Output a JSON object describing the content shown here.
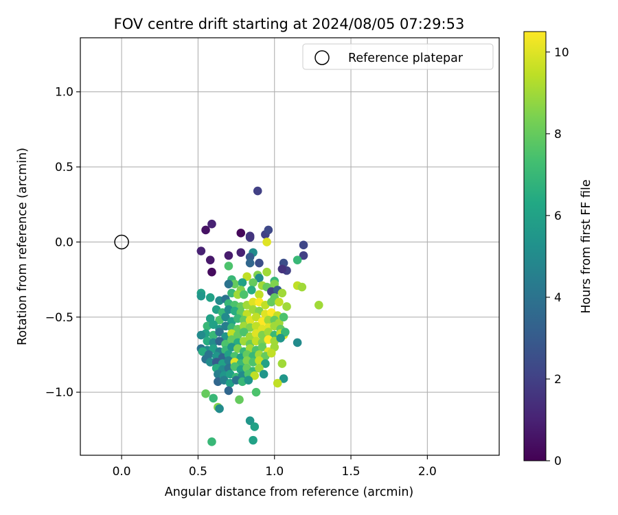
{
  "chart_data": {
    "type": "scatter",
    "title": "FOV centre drift starting at 2024/08/05 07:29:53",
    "xlabel": "Angular distance from reference (arcmin)",
    "ylabel": "Rotation from reference (arcmin)",
    "xlim": [
      -0.27,
      2.47
    ],
    "ylim": [
      -1.42,
      1.36
    ],
    "xticks": [
      0.0,
      0.5,
      1.0,
      1.5,
      2.0
    ],
    "yticks": [
      1.0,
      0.5,
      0.0,
      -0.5,
      -1.0
    ],
    "xtick_labels": [
      "0.0",
      "0.5",
      "1.0",
      "1.5",
      "2.0"
    ],
    "ytick_labels": [
      "1.0",
      "0.5",
      "0.0",
      "−0.5",
      "−1.0"
    ],
    "grid": true,
    "legend": {
      "placement": "upper-right",
      "entries": [
        {
          "label": "Reference platepar",
          "marker": "open-circle",
          "color": "#000000"
        }
      ]
    },
    "reference_point": {
      "x": 0.0,
      "y": 0.0
    },
    "colorbar": {
      "label": "Hours from first FF file",
      "colormap": "viridis",
      "range": [
        0,
        10.5
      ],
      "ticks": [
        0,
        2,
        4,
        6,
        8,
        10
      ],
      "tick_labels": [
        "0",
        "2",
        "4",
        "6",
        "8",
        "10"
      ]
    },
    "series": [
      {
        "marker": "filled-circle",
        "fields": [
          "x",
          "y",
          "hours"
        ],
        "points": [
          [
            0.89,
            0.34,
            2.0
          ],
          [
            0.55,
            0.08,
            0.5
          ],
          [
            0.59,
            0.12,
            1.0
          ],
          [
            0.78,
            0.06,
            0.2
          ],
          [
            0.84,
            0.03,
            1.8
          ],
          [
            0.84,
            0.04,
            1.6
          ],
          [
            0.94,
            0.05,
            2.0
          ],
          [
            0.96,
            0.08,
            2.3
          ],
          [
            0.95,
            0.0,
            10.0
          ],
          [
            1.19,
            -0.02,
            2.2
          ],
          [
            1.19,
            -0.09,
            2.0
          ],
          [
            0.52,
            -0.06,
            1.0
          ],
          [
            0.58,
            -0.12,
            0.7
          ],
          [
            0.59,
            -0.2,
            0.3
          ],
          [
            0.7,
            -0.09,
            0.8
          ],
          [
            0.78,
            -0.07,
            1.0
          ],
          [
            0.86,
            -0.07,
            5.0
          ],
          [
            0.84,
            -0.1,
            3.0
          ],
          [
            0.84,
            -0.14,
            3.5
          ],
          [
            0.9,
            -0.14,
            2.5
          ],
          [
            0.7,
            -0.16,
            7.5
          ],
          [
            1.06,
            -0.14,
            2.5
          ],
          [
            1.08,
            -0.19,
            2.0
          ],
          [
            1.05,
            -0.18,
            1.5
          ],
          [
            1.15,
            -0.12,
            7.0
          ],
          [
            0.95,
            -0.2,
            9.0
          ],
          [
            0.89,
            -0.22,
            8.5
          ],
          [
            0.82,
            -0.23,
            9.5
          ],
          [
            0.9,
            -0.24,
            5.0
          ],
          [
            0.72,
            -0.25,
            7.0
          ],
          [
            0.74,
            -0.28,
            8.0
          ],
          [
            0.7,
            -0.28,
            4.0
          ],
          [
            0.79,
            -0.27,
            6.0
          ],
          [
            0.86,
            -0.27,
            8.0
          ],
          [
            0.92,
            -0.29,
            9.0
          ],
          [
            1.0,
            -0.26,
            7.0
          ],
          [
            1.0,
            -0.28,
            8.5
          ],
          [
            1.15,
            -0.29,
            9.5
          ],
          [
            1.18,
            -0.3,
            9.0
          ],
          [
            0.95,
            -0.3,
            8.0
          ],
          [
            0.85,
            -0.32,
            6.5
          ],
          [
            0.78,
            -0.32,
            8.5
          ],
          [
            0.72,
            -0.34,
            7.0
          ],
          [
            0.76,
            -0.35,
            9.0
          ],
          [
            0.8,
            -0.35,
            7.5
          ],
          [
            0.9,
            -0.35,
            9.5
          ],
          [
            0.98,
            -0.33,
            2.0
          ],
          [
            1.02,
            -0.32,
            3.0
          ],
          [
            1.05,
            -0.34,
            9.0
          ],
          [
            1.0,
            -0.37,
            8.0
          ],
          [
            0.52,
            -0.34,
            6.0
          ],
          [
            0.52,
            -0.36,
            5.5
          ],
          [
            0.58,
            -0.37,
            6.0
          ],
          [
            0.64,
            -0.39,
            5.0
          ],
          [
            0.68,
            -0.38,
            4.0
          ],
          [
            0.7,
            -0.41,
            7.0
          ],
          [
            0.74,
            -0.42,
            7.5
          ],
          [
            0.78,
            -0.43,
            8.0
          ],
          [
            0.82,
            -0.42,
            9.0
          ],
          [
            0.86,
            -0.4,
            10.0
          ],
          [
            0.9,
            -0.4,
            10.5
          ],
          [
            0.94,
            -0.42,
            9.5
          ],
          [
            0.98,
            -0.4,
            8.0
          ],
          [
            1.03,
            -0.4,
            9.5
          ],
          [
            1.08,
            -0.43,
            9.0
          ],
          [
            1.29,
            -0.42,
            9.0
          ],
          [
            0.62,
            -0.45,
            6.0
          ],
          [
            0.66,
            -0.47,
            7.0
          ],
          [
            0.7,
            -0.45,
            5.0
          ],
          [
            0.74,
            -0.46,
            6.5
          ],
          [
            0.78,
            -0.47,
            8.0
          ],
          [
            0.82,
            -0.48,
            9.5
          ],
          [
            0.86,
            -0.45,
            9.0
          ],
          [
            0.9,
            -0.46,
            8.5
          ],
          [
            0.94,
            -0.48,
            10.0
          ],
          [
            0.98,
            -0.47,
            10.5
          ],
          [
            1.02,
            -0.49,
            9.5
          ],
          [
            0.58,
            -0.51,
            6.0
          ],
          [
            0.64,
            -0.52,
            7.5
          ],
          [
            0.68,
            -0.5,
            5.0
          ],
          [
            0.72,
            -0.53,
            6.0
          ],
          [
            0.76,
            -0.51,
            7.0
          ],
          [
            0.8,
            -0.52,
            8.0
          ],
          [
            0.84,
            -0.52,
            10.0
          ],
          [
            0.88,
            -0.5,
            9.5
          ],
          [
            0.92,
            -0.53,
            10.5
          ],
          [
            0.96,
            -0.52,
            9.0
          ],
          [
            1.0,
            -0.52,
            8.0
          ],
          [
            1.03,
            -0.54,
            9.0
          ],
          [
            1.06,
            -0.5,
            7.5
          ],
          [
            0.56,
            -0.56,
            7.0
          ],
          [
            0.6,
            -0.55,
            6.0
          ],
          [
            0.64,
            -0.58,
            5.5
          ],
          [
            0.68,
            -0.56,
            4.5
          ],
          [
            0.72,
            -0.57,
            7.0
          ],
          [
            0.76,
            -0.58,
            8.0
          ],
          [
            0.8,
            -0.56,
            9.0
          ],
          [
            0.84,
            -0.57,
            8.5
          ],
          [
            0.88,
            -0.56,
            9.5
          ],
          [
            0.92,
            -0.58,
            10.0
          ],
          [
            0.96,
            -0.57,
            10.0
          ],
          [
            1.0,
            -0.56,
            9.0
          ],
          [
            1.04,
            -0.58,
            8.0
          ],
          [
            0.55,
            -0.61,
            6.0
          ],
          [
            0.6,
            -0.62,
            7.0
          ],
          [
            0.64,
            -0.6,
            4.0
          ],
          [
            0.68,
            -0.63,
            5.5
          ],
          [
            0.72,
            -0.61,
            9.5
          ],
          [
            0.76,
            -0.62,
            8.0
          ],
          [
            0.8,
            -0.6,
            7.5
          ],
          [
            0.84,
            -0.63,
            9.0
          ],
          [
            0.88,
            -0.61,
            10.0
          ],
          [
            0.92,
            -0.62,
            8.5
          ],
          [
            0.96,
            -0.6,
            9.0
          ],
          [
            1.0,
            -0.62,
            7.0
          ],
          [
            1.04,
            -0.61,
            9.5
          ],
          [
            1.06,
            -0.62,
            10.0
          ],
          [
            1.07,
            -0.6,
            7.0
          ],
          [
            0.52,
            -0.62,
            5.0
          ],
          [
            0.56,
            -0.66,
            6.5
          ],
          [
            0.6,
            -0.67,
            5.0
          ],
          [
            0.64,
            -0.66,
            3.5
          ],
          [
            0.68,
            -0.68,
            7.5
          ],
          [
            0.72,
            -0.65,
            8.0
          ],
          [
            0.76,
            -0.67,
            6.5
          ],
          [
            0.8,
            -0.66,
            9.0
          ],
          [
            0.84,
            -0.68,
            8.0
          ],
          [
            0.88,
            -0.66,
            9.5
          ],
          [
            0.92,
            -0.67,
            8.5
          ],
          [
            0.96,
            -0.65,
            10.5
          ],
          [
            1.0,
            -0.66,
            9.0
          ],
          [
            1.04,
            -0.64,
            5.5
          ],
          [
            1.15,
            -0.67,
            5.0
          ],
          [
            0.52,
            -0.71,
            4.0
          ],
          [
            0.56,
            -0.72,
            5.0
          ],
          [
            0.6,
            -0.71,
            6.0
          ],
          [
            0.64,
            -0.73,
            4.5
          ],
          [
            0.68,
            -0.72,
            7.0
          ],
          [
            0.72,
            -0.7,
            5.5
          ],
          [
            0.76,
            -0.71,
            8.5
          ],
          [
            0.8,
            -0.73,
            7.0
          ],
          [
            0.84,
            -0.71,
            9.0
          ],
          [
            0.88,
            -0.72,
            7.5
          ],
          [
            0.92,
            -0.7,
            8.0
          ],
          [
            0.96,
            -0.73,
            10.0
          ],
          [
            1.0,
            -0.7,
            9.0
          ],
          [
            0.53,
            -0.73,
            6.5
          ],
          [
            0.57,
            -0.75,
            4.0
          ],
          [
            0.62,
            -0.76,
            5.5
          ],
          [
            0.66,
            -0.77,
            3.5
          ],
          [
            0.7,
            -0.75,
            6.0
          ],
          [
            0.74,
            -0.76,
            7.5
          ],
          [
            0.78,
            -0.77,
            6.0
          ],
          [
            0.82,
            -0.75,
            8.0
          ],
          [
            0.86,
            -0.76,
            7.0
          ],
          [
            0.9,
            -0.75,
            9.0
          ],
          [
            0.94,
            -0.76,
            8.0
          ],
          [
            0.98,
            -0.74,
            9.5
          ],
          [
            0.55,
            -0.78,
            4.0
          ],
          [
            0.58,
            -0.8,
            5.0
          ],
          [
            0.62,
            -0.8,
            3.0
          ],
          [
            0.66,
            -0.81,
            6.0
          ],
          [
            0.7,
            -0.79,
            4.5
          ],
          [
            0.74,
            -0.8,
            10.0
          ],
          [
            0.78,
            -0.81,
            7.0
          ],
          [
            0.82,
            -0.79,
            8.5
          ],
          [
            0.86,
            -0.8,
            7.5
          ],
          [
            0.9,
            -0.79,
            9.5
          ],
          [
            0.94,
            -0.81,
            6.0
          ],
          [
            1.05,
            -0.81,
            9.0
          ],
          [
            0.62,
            -0.84,
            6.5
          ],
          [
            0.66,
            -0.85,
            5.0
          ],
          [
            0.7,
            -0.84,
            4.0
          ],
          [
            0.74,
            -0.83,
            7.5
          ],
          [
            0.78,
            -0.85,
            6.0
          ],
          [
            0.82,
            -0.84,
            8.0
          ],
          [
            0.86,
            -0.86,
            7.0
          ],
          [
            0.9,
            -0.84,
            9.0
          ],
          [
            0.63,
            -0.88,
            4.5
          ],
          [
            0.67,
            -0.89,
            5.5
          ],
          [
            0.71,
            -0.88,
            6.0
          ],
          [
            0.75,
            -0.9,
            7.0
          ],
          [
            0.79,
            -0.89,
            5.0
          ],
          [
            0.83,
            -0.88,
            7.5
          ],
          [
            0.87,
            -0.89,
            9.5
          ],
          [
            0.93,
            -0.88,
            5.5
          ],
          [
            0.63,
            -0.93,
            3.5
          ],
          [
            0.67,
            -0.92,
            4.5
          ],
          [
            0.71,
            -0.94,
            6.0
          ],
          [
            0.75,
            -0.92,
            4.0
          ],
          [
            0.79,
            -0.93,
            7.0
          ],
          [
            0.83,
            -0.92,
            5.5
          ],
          [
            1.06,
            -0.91,
            5.5
          ],
          [
            1.02,
            -0.94,
            9.5
          ],
          [
            0.7,
            -0.99,
            3.5
          ],
          [
            0.55,
            -1.01,
            8.0
          ],
          [
            0.6,
            -1.04,
            7.0
          ],
          [
            0.77,
            -1.05,
            8.0
          ],
          [
            0.88,
            -1.0,
            7.5
          ],
          [
            0.63,
            -1.1,
            8.5
          ],
          [
            0.64,
            -1.11,
            5.0
          ],
          [
            0.84,
            -1.19,
            5.5
          ],
          [
            0.87,
            -1.23,
            6.0
          ],
          [
            0.59,
            -1.33,
            7.0
          ],
          [
            0.86,
            -1.32,
            6.0
          ]
        ]
      }
    ]
  }
}
